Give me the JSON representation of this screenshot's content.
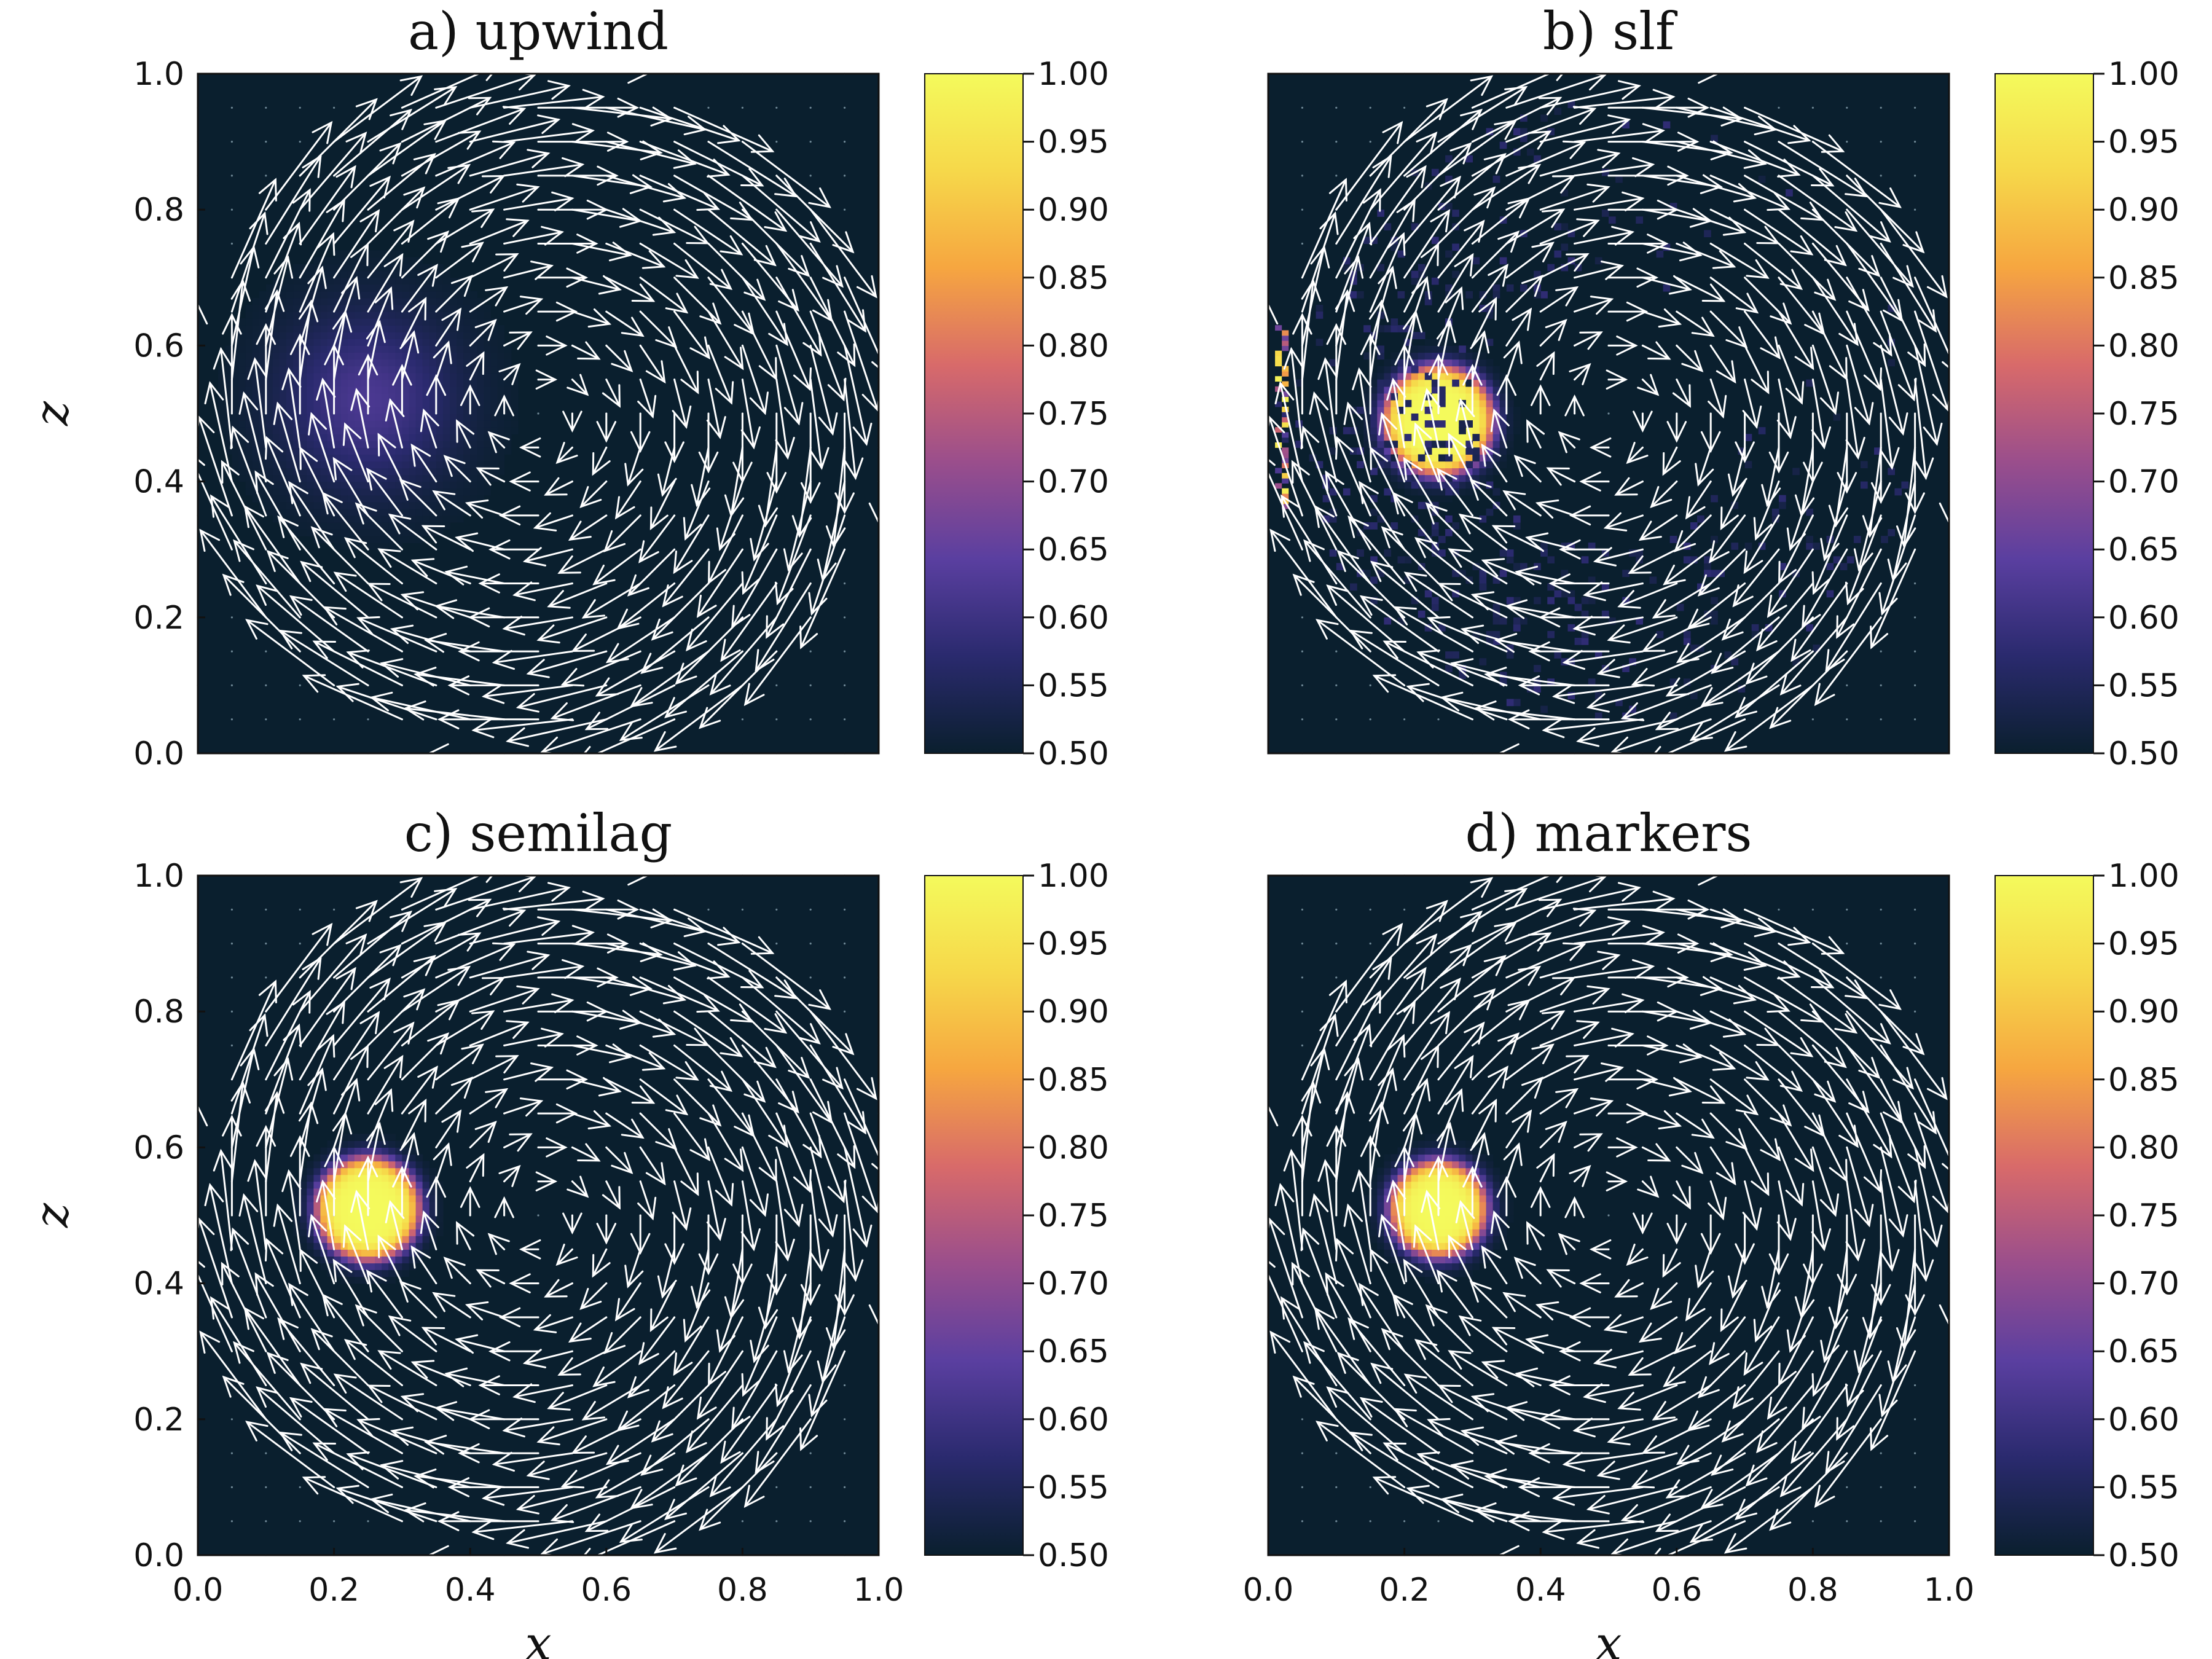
{
  "chart_data": {
    "type": "heatmap",
    "colormap": [
      "#0a1f2e",
      "#2a2a6e",
      "#5a3fa0",
      "#9a4e8c",
      "#d86a6a",
      "#f6a640",
      "#f6d84a",
      "#f4fa5c"
    ],
    "background_color": "#0a1f2e",
    "arrow_color": "#ffffff",
    "xlabel": "x",
    "ylabel": "z",
    "xlim": [
      0.0,
      1.0
    ],
    "ylim": [
      0.0,
      1.0
    ],
    "x_ticks": [
      "0.0",
      "0.2",
      "0.4",
      "0.6",
      "0.8",
      "1.0"
    ],
    "y_ticks": [
      "0.0",
      "0.2",
      "0.4",
      "0.6",
      "0.8",
      "1.0"
    ],
    "colorbar_ticks": [
      "0.50",
      "0.55",
      "0.60",
      "0.65",
      "0.70",
      "0.75",
      "0.80",
      "0.85",
      "0.90",
      "0.95",
      "1.00"
    ],
    "colorbar_range": [
      0.5,
      1.0
    ],
    "grid": false,
    "velocity_field": "rigid clockwise rotation about (0.5, 0.5)",
    "panels": [
      {
        "title": "a)   upwind",
        "blob": {
          "x": 0.25,
          "z": 0.52,
          "radius": 0.16,
          "peak": 0.62,
          "profile": "diffuse"
        },
        "numerical_noise": false
      },
      {
        "title": "b)   slf",
        "blob": {
          "x": 0.25,
          "z": 0.49,
          "radius": 0.08,
          "peak": 1.0,
          "profile": "sharp"
        },
        "numerical_noise": true
      },
      {
        "title": "c)   semilag",
        "blob": {
          "x": 0.25,
          "z": 0.51,
          "radius": 0.075,
          "peak": 1.0,
          "profile": "sharp"
        },
        "numerical_noise": false
      },
      {
        "title": "d)   markers",
        "blob": {
          "x": 0.25,
          "z": 0.51,
          "radius": 0.07,
          "peak": 1.0,
          "profile": "sharp"
        },
        "numerical_noise": false
      }
    ]
  }
}
